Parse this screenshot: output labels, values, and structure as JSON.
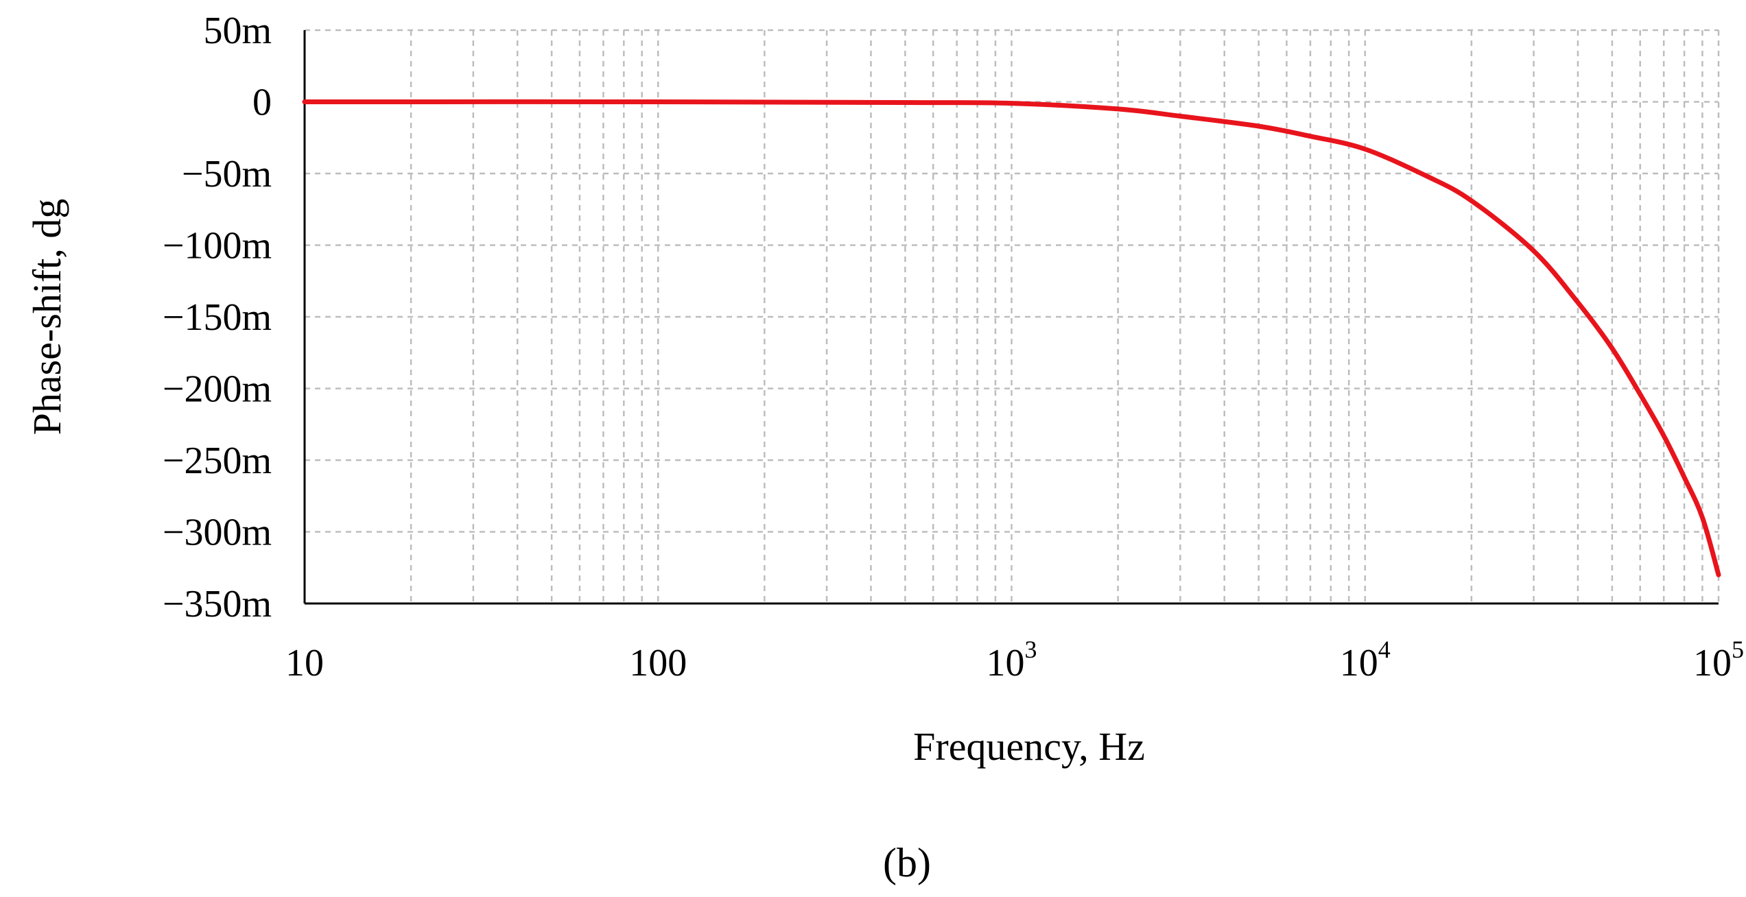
{
  "chart_data": {
    "type": "line",
    "xscale": "log",
    "xlabel": "Frequency, Hz",
    "ylabel": "Phase-shift, dg",
    "xlim": [
      10,
      100000
    ],
    "ylim": [
      -350,
      50
    ],
    "y_unit_suffix": "m",
    "grid": true,
    "x_ticks": [
      {
        "value": 10,
        "base": "10",
        "exp": ""
      },
      {
        "value": 100,
        "base": "100",
        "exp": ""
      },
      {
        "value": 1000,
        "base": "10",
        "exp": "3"
      },
      {
        "value": 10000,
        "base": "10",
        "exp": "4"
      },
      {
        "value": 100000,
        "base": "10",
        "exp": "5"
      }
    ],
    "y_ticks": [
      {
        "value": 50,
        "label": "50m"
      },
      {
        "value": 0,
        "label": "0"
      },
      {
        "value": -50,
        "label": "−50m"
      },
      {
        "value": -100,
        "label": "−100m"
      },
      {
        "value": -150,
        "label": "−150m"
      },
      {
        "value": -200,
        "label": "−200m"
      },
      {
        "value": -250,
        "label": "−250m"
      },
      {
        "value": -300,
        "label": "−300m"
      },
      {
        "value": -350,
        "label": "−350m"
      }
    ],
    "series": [
      {
        "name": "Phase-shift",
        "color": "#e8141c",
        "x": [
          10,
          100,
          500,
          1000,
          2000,
          3000,
          5000,
          7000,
          10000,
          15000,
          20000,
          30000,
          40000,
          50000,
          60000,
          70000,
          80000,
          90000,
          100000
        ],
        "y": [
          0,
          0,
          -0.5,
          -1,
          -5,
          -10,
          -17,
          -24,
          -33,
          -52,
          -69,
          -104,
          -140,
          -172,
          -204,
          -233,
          -262,
          -290,
          -330
        ]
      }
    ]
  },
  "caption": "(b)"
}
